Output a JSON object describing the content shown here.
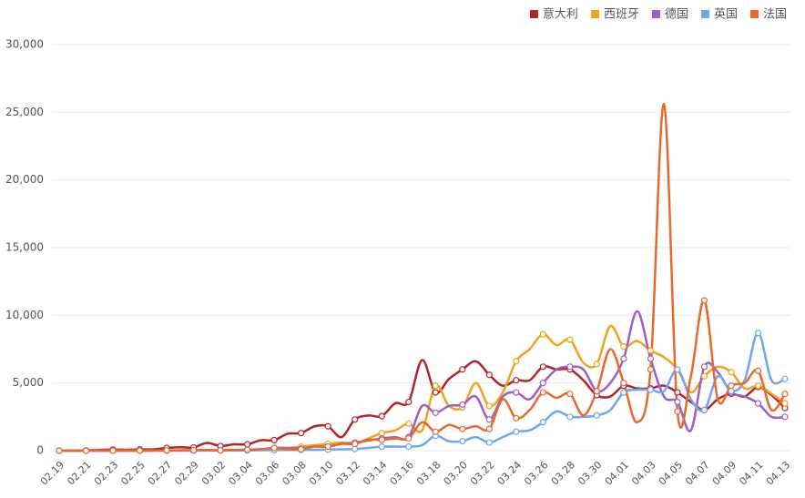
{
  "chart_data": {
    "type": "line",
    "categories": [
      "02.19",
      null,
      "02.21",
      null,
      "02.23",
      null,
      "02.25",
      null,
      "02.27",
      null,
      "02.29",
      null,
      "03.02",
      null,
      "03.04",
      null,
      "03.06",
      null,
      "03.08",
      null,
      "03.10",
      null,
      "03.12",
      null,
      "03.14",
      null,
      "03.16",
      null,
      "03.18",
      null,
      "03.20",
      null,
      "03.22",
      null,
      "03.24",
      null,
      "03.26",
      null,
      "03.28",
      null,
      "03.30",
      null,
      "04.01",
      null,
      "04.03",
      null,
      "04.05",
      null,
      "04.07",
      null,
      "04.09",
      null,
      "04.11",
      null,
      "04.13"
    ],
    "series": [
      {
        "name": "意大利",
        "color": "#b3242d",
        "values": [
          0,
          0,
          20,
          60,
          80,
          70,
          90,
          100,
          200,
          250,
          240,
          570,
          340,
          470,
          470,
          770,
          780,
          1250,
          1300,
          1800,
          1800,
          1000,
          2300,
          2600,
          2550,
          3500,
          3600,
          6700,
          4300,
          5300,
          6000,
          6600,
          5600,
          4800,
          5200,
          5200,
          6200,
          6000,
          6000,
          5200,
          4100,
          4000,
          4800,
          4600,
          4600,
          4800,
          4300,
          3600,
          3000,
          3800,
          4200,
          4000,
          4700,
          4100,
          3150
        ]
      },
      {
        "name": "西班牙",
        "color": "#f0a31c",
        "values": [
          0,
          0,
          0,
          0,
          0,
          2,
          4,
          3,
          5,
          10,
          15,
          30,
          30,
          50,
          60,
          100,
          150,
          200,
          300,
          400,
          500,
          600,
          500,
          900,
          1300,
          1500,
          2000,
          1500,
          4800,
          3300,
          3200,
          5000,
          3300,
          4300,
          6600,
          7500,
          8600,
          7800,
          8200,
          6500,
          6400,
          9200,
          7700,
          8100,
          7400,
          6900,
          6000,
          4300,
          5500,
          6200,
          5800,
          4600,
          4800,
          4200,
          3500
        ]
      },
      {
        "name": "德国",
        "color": "#9b5fc7",
        "values": [
          0,
          0,
          0,
          0,
          0,
          0,
          2,
          20,
          10,
          30,
          20,
          50,
          30,
          50,
          70,
          100,
          200,
          200,
          150,
          300,
          300,
          500,
          600,
          750,
          900,
          1000,
          1000,
          3300,
          2800,
          3300,
          3400,
          4000,
          2300,
          4000,
          4300,
          3800,
          5000,
          6000,
          6200,
          6000,
          4400,
          5000,
          6800,
          10300,
          6800,
          4000,
          3600,
          1500,
          6200,
          5800,
          4300,
          4000,
          3500,
          2500,
          2500
        ]
      },
      {
        "name": "英国",
        "color": "#6ea8ea",
        "values": [
          0,
          0,
          0,
          0,
          0,
          0,
          0,
          0,
          0,
          3,
          5,
          10,
          10,
          15,
          20,
          30,
          40,
          50,
          60,
          60,
          80,
          100,
          120,
          200,
          300,
          300,
          300,
          400,
          1100,
          700,
          700,
          1000,
          600,
          1000,
          1400,
          1500,
          2100,
          2900,
          2500,
          2500,
          2600,
          3000,
          4300,
          4500,
          4500,
          4400,
          6000,
          3800,
          3000,
          5500,
          4400,
          5200,
          8700,
          5200,
          5300
        ]
      },
      {
        "name": "法国",
        "color": "#e8692c",
        "values": [
          0,
          0,
          0,
          0,
          0,
          0,
          2,
          1,
          20,
          20,
          40,
          30,
          20,
          50,
          60,
          100,
          200,
          100,
          100,
          300,
          300,
          500,
          500,
          800,
          800,
          900,
          900,
          2100,
          1400,
          1900,
          1600,
          1800,
          1600,
          3800,
          2400,
          3000,
          4300,
          3900,
          4200,
          2600,
          4400,
          7500,
          5000,
          2100,
          6000,
          25600,
          2900,
          5500,
          11100,
          3800,
          4800,
          5000,
          5900,
          3000,
          4200
        ]
      }
    ],
    "ylim": [
      0,
      30000
    ],
    "yticks": [
      0,
      {
        "value": 5000,
        "label": "5,000"
      },
      {
        "value": 10000,
        "label": "10,000"
      },
      {
        "value": 15000,
        "label": "15,000"
      },
      {
        "value": 20000,
        "label": "20,000"
      },
      {
        "value": 25000,
        "label": "25,000"
      },
      {
        "value": 30000,
        "label": "30,000"
      }
    ],
    "grid": true,
    "legend": "top-right"
  }
}
